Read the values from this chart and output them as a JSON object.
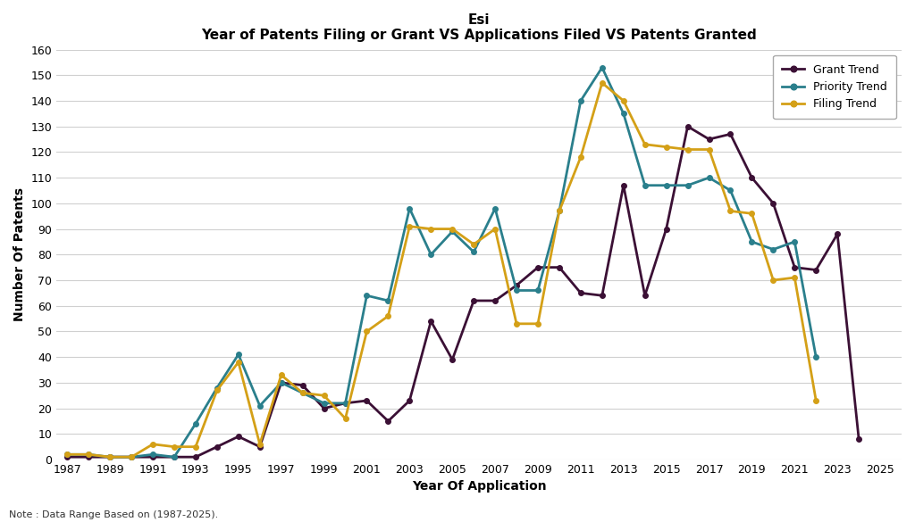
{
  "title_main": "Esi",
  "title_sub": "Year of Patents Filing or Grant VS Applications Filed VS Patents Granted",
  "xlabel": "Year Of Application",
  "ylabel": "Number Of Patents",
  "note": "Note : Data Range Based on (1987-2025).",
  "years": [
    1987,
    1988,
    1989,
    1990,
    1991,
    1992,
    1993,
    1994,
    1995,
    1996,
    1997,
    1998,
    1999,
    2000,
    2001,
    2002,
    2003,
    2004,
    2005,
    2006,
    2007,
    2008,
    2009,
    2010,
    2011,
    2012,
    2013,
    2014,
    2015,
    2016,
    2017,
    2018,
    2019,
    2020,
    2021,
    2022,
    2023,
    2024,
    2025
  ],
  "grant_trend": [
    1,
    1,
    1,
    1,
    1,
    1,
    1,
    5,
    9,
    5,
    30,
    29,
    20,
    22,
    23,
    15,
    23,
    54,
    39,
    62,
    62,
    68,
    75,
    75,
    65,
    64,
    107,
    64,
    90,
    130,
    125,
    127,
    110,
    100,
    75,
    74,
    88,
    8,
    null
  ],
  "priority_trend": [
    2,
    2,
    1,
    1,
    2,
    1,
    14,
    28,
    41,
    21,
    30,
    26,
    22,
    22,
    64,
    62,
    98,
    80,
    89,
    81,
    98,
    66,
    66,
    97,
    140,
    153,
    135,
    107,
    107,
    107,
    110,
    105,
    85,
    82,
    85,
    40,
    null,
    null,
    null
  ],
  "filing_trend": [
    2,
    2,
    1,
    1,
    6,
    5,
    5,
    27,
    38,
    6,
    33,
    26,
    25,
    16,
    50,
    56,
    91,
    90,
    90,
    84,
    90,
    53,
    53,
    97,
    118,
    147,
    140,
    123,
    122,
    121,
    121,
    97,
    96,
    70,
    71,
    23,
    null,
    null,
    null
  ],
  "grant_color": "#3b1035",
  "priority_color": "#2a7f8c",
  "filing_color": "#d4a017",
  "ylim": [
    0,
    160
  ],
  "yticks": [
    0,
    10,
    20,
    30,
    40,
    50,
    60,
    70,
    80,
    90,
    100,
    110,
    120,
    130,
    140,
    150,
    160
  ],
  "xtick_labels": [
    "1987",
    "1989",
    "1991",
    "1993",
    "1995",
    "1997",
    "1999",
    "2001",
    "2003",
    "2005",
    "2007",
    "2009",
    "2011",
    "2013",
    "2015",
    "2017",
    "2019",
    "2021",
    "2023",
    "2025"
  ],
  "legend_labels": [
    "Grant Trend",
    "Priority Trend",
    "Filing Trend"
  ],
  "bg_color": "#ffffff",
  "grid_color": "#d0d0d0"
}
